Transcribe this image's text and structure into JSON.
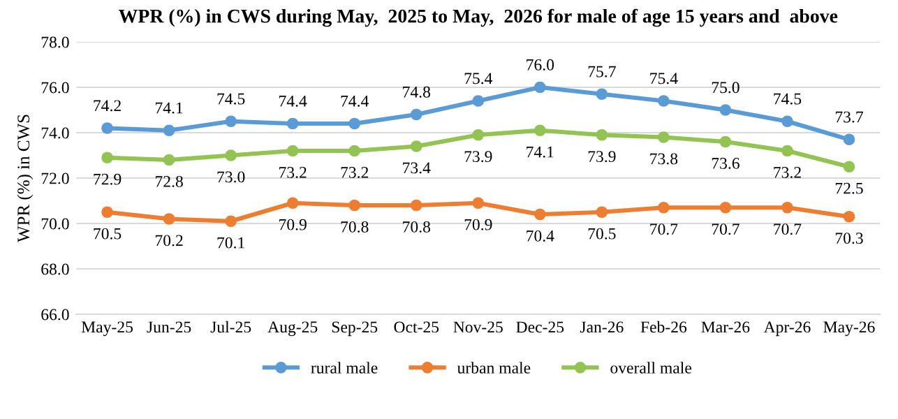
{
  "chart_data": {
    "type": "line",
    "title": "WPR (%) in CWS during May,  2025 to May,  2026 for male of age 15 years and  above",
    "ylabel": "WPR (%) in CWS",
    "categories": [
      "May-25",
      "Jun-25",
      "Jul-25",
      "Aug-25",
      "Sep-25",
      "Oct-25",
      "Nov-25",
      "Dec-25",
      "Jan-26",
      "Feb-26",
      "Mar-26",
      "Apr-26",
      "May-26"
    ],
    "series": [
      {
        "name": "rural male",
        "color": "#5b9bd5",
        "values": [
          74.2,
          74.1,
          74.5,
          74.4,
          74.4,
          74.8,
          75.4,
          76.0,
          75.7,
          75.4,
          75.0,
          74.5,
          73.7
        ],
        "value_labels": [
          "74.2",
          "74.1",
          "74.5",
          "74.4",
          "74.4",
          "74.8",
          "75.4",
          "76.0",
          "75.7",
          "75.4",
          "75.0",
          "74.5",
          "73.7"
        ]
      },
      {
        "name": "urban male",
        "color": "#ed7d31",
        "values": [
          70.5,
          70.2,
          70.1,
          70.9,
          70.8,
          70.8,
          70.9,
          70.4,
          70.5,
          70.7,
          70.7,
          70.7,
          70.3
        ],
        "value_labels": [
          "70.5",
          "70.2",
          "70.1",
          "70.9",
          "70.8",
          "70.8",
          "70.9",
          "70.4",
          "70.5",
          "70.7",
          "70.7",
          "70.7",
          "70.3"
        ]
      },
      {
        "name": "overall male",
        "color": "#92c353",
        "values": [
          72.9,
          72.8,
          73.0,
          73.2,
          73.2,
          73.4,
          73.9,
          74.1,
          73.9,
          73.8,
          73.6,
          73.2,
          72.5
        ],
        "value_labels": [
          "72.9",
          "72.8",
          "73.0",
          "73.2",
          "73.2",
          "73.4",
          "73.9",
          "74.1",
          "73.9",
          "73.8",
          "73.6",
          "73.2",
          "72.5"
        ]
      }
    ],
    "ylim": [
      66,
      78
    ],
    "yticks": [
      {
        "value": 66,
        "label": "66.0"
      },
      {
        "value": 68,
        "label": "68.0"
      },
      {
        "value": 70,
        "label": "70.0"
      },
      {
        "value": 72,
        "label": "72.0"
      },
      {
        "value": 74,
        "label": "74.0"
      },
      {
        "value": 76,
        "label": "76.0"
      },
      {
        "value": 78,
        "label": "78.0"
      }
    ],
    "grid": "y",
    "legend": "bottom",
    "marker": "circle",
    "line_style": "solid"
  }
}
